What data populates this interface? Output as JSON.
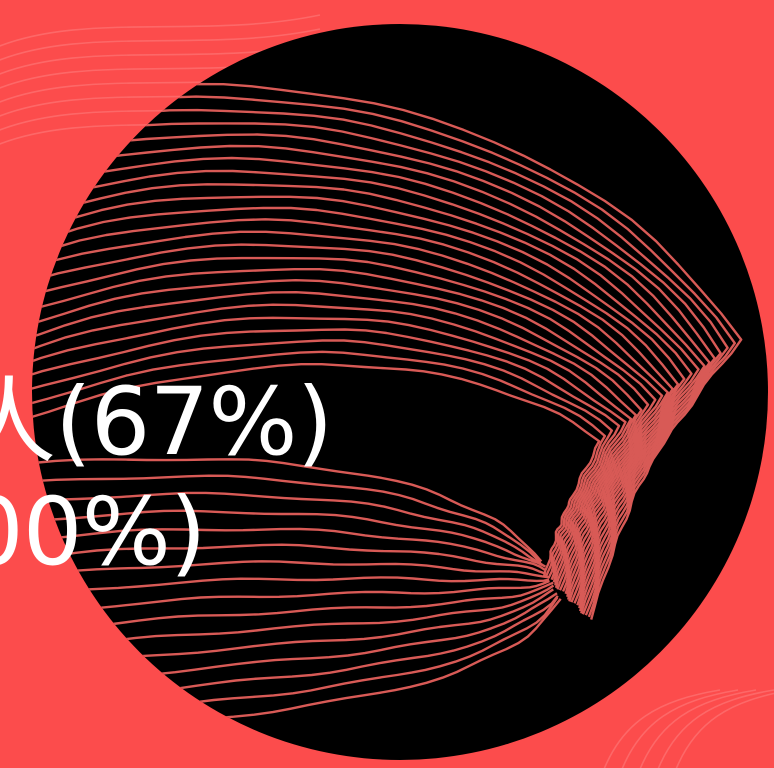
{
  "caption": {
    "line1": "人(67%)",
    "line2": "00%)"
  },
  "colors": {
    "background": "#fc4c4c",
    "circle": "#000000",
    "contour_stroke": "#d85a56",
    "faint_background_lines": "#ff8c8c",
    "text": "#ffffff"
  }
}
